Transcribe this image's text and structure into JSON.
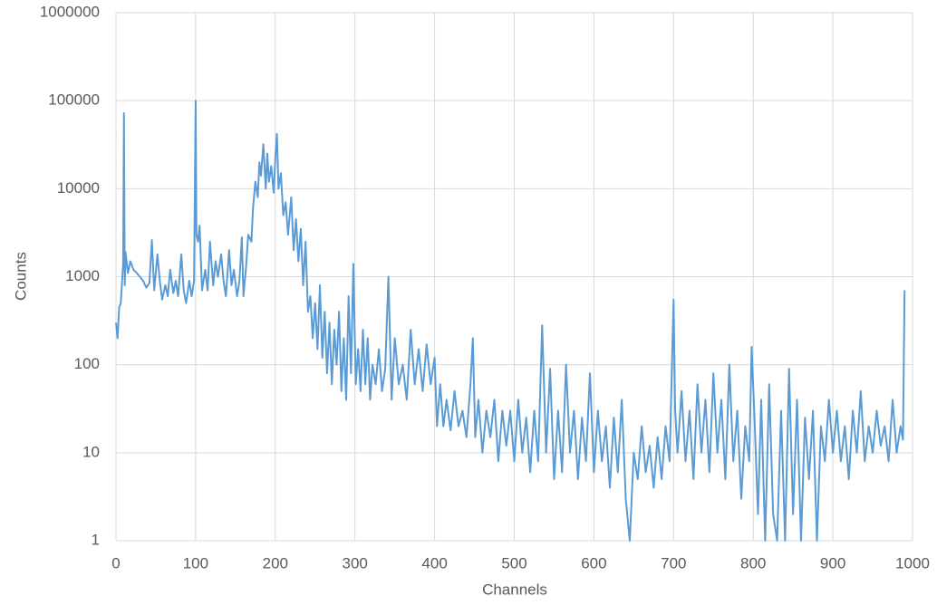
{
  "chart_data": {
    "type": "line",
    "x_label": "Channels",
    "y_label": "Counts",
    "log_y": true,
    "grid": true,
    "xlim": [
      0,
      1000
    ],
    "xticks": [
      0,
      100,
      200,
      300,
      400,
      500,
      600,
      700,
      800,
      900,
      1000
    ],
    "ylim": [
      1,
      1000000
    ],
    "yticks": [
      1,
      10,
      100,
      1000,
      10000,
      100000,
      1000000
    ],
    "x": [
      0,
      2,
      4,
      6,
      9,
      10,
      11,
      12,
      15,
      18,
      22,
      26,
      30,
      34,
      38,
      42,
      45,
      48,
      52,
      55,
      58,
      62,
      65,
      68,
      72,
      75,
      78,
      82,
      85,
      88,
      92,
      95,
      98,
      100,
      101,
      103,
      105,
      108,
      112,
      115,
      118,
      122,
      125,
      128,
      132,
      135,
      138,
      142,
      145,
      148,
      152,
      155,
      158,
      160,
      163,
      166,
      170,
      172,
      175,
      178,
      180,
      182,
      185,
      188,
      190,
      192,
      195,
      198,
      200,
      202,
      204,
      207,
      210,
      213,
      216,
      220,
      223,
      226,
      229,
      232,
      235,
      238,
      241,
      244,
      247,
      250,
      253,
      256,
      259,
      262,
      265,
      268,
      271,
      274,
      277,
      280,
      283,
      286,
      289,
      292,
      295,
      298,
      301,
      304,
      307,
      310,
      313,
      316,
      319,
      322,
      326,
      330,
      334,
      338,
      342,
      346,
      350,
      355,
      360,
      365,
      370,
      375,
      380,
      385,
      390,
      395,
      400,
      403,
      407,
      411,
      415,
      420,
      425,
      430,
      435,
      440,
      445,
      448,
      451,
      455,
      460,
      465,
      470,
      475,
      480,
      485,
      490,
      495,
      500,
      505,
      510,
      515,
      520,
      525,
      530,
      535,
      540,
      545,
      550,
      555,
      560,
      565,
      570,
      575,
      580,
      585,
      590,
      595,
      600,
      605,
      610,
      615,
      620,
      625,
      630,
      635,
      640,
      645,
      650,
      655,
      660,
      665,
      670,
      675,
      680,
      685,
      690,
      695,
      700,
      702,
      705,
      710,
      715,
      720,
      725,
      730,
      735,
      740,
      745,
      750,
      755,
      760,
      765,
      770,
      775,
      780,
      785,
      790,
      795,
      798,
      802,
      806,
      810,
      815,
      820,
      825,
      830,
      835,
      840,
      845,
      850,
      855,
      860,
      865,
      870,
      875,
      880,
      885,
      890,
      895,
      900,
      905,
      910,
      915,
      920,
      925,
      930,
      935,
      940,
      945,
      950,
      955,
      960,
      965,
      970,
      975,
      980,
      985,
      988,
      990
    ],
    "series": [
      {
        "color": "#5b9bd5",
        "values": [
          300,
          200,
          450,
          500,
          1400,
          72000,
          800,
          1900,
          1100,
          1500,
          1200,
          1100,
          1000,
          900,
          750,
          850,
          2600,
          700,
          1800,
          900,
          550,
          800,
          600,
          1200,
          650,
          900,
          600,
          1800,
          700,
          500,
          900,
          600,
          900,
          100000,
          3000,
          2500,
          3800,
          700,
          1200,
          700,
          2500,
          800,
          1500,
          1000,
          1800,
          900,
          600,
          2000,
          800,
          1200,
          600,
          900,
          2800,
          600,
          1200,
          3000,
          2500,
          6000,
          12000,
          8000,
          20000,
          14000,
          32000,
          10000,
          25000,
          12000,
          18000,
          9000,
          22000,
          42000,
          10000,
          15000,
          5000,
          7000,
          3000,
          8000,
          2000,
          4500,
          1500,
          3500,
          800,
          2500,
          400,
          600,
          200,
          500,
          150,
          800,
          120,
          400,
          80,
          300,
          60,
          250,
          100,
          400,
          50,
          200,
          40,
          600,
          80,
          1400,
          60,
          150,
          50,
          250,
          60,
          200,
          40,
          100,
          60,
          150,
          50,
          90,
          1000,
          40,
          200,
          60,
          100,
          40,
          250,
          60,
          150,
          50,
          170,
          60,
          120,
          20,
          60,
          20,
          40,
          18,
          50,
          20,
          30,
          15,
          60,
          200,
          15,
          40,
          10,
          30,
          15,
          40,
          8,
          30,
          12,
          30,
          8,
          40,
          10,
          25,
          6,
          30,
          8,
          280,
          10,
          90,
          5,
          30,
          6,
          100,
          10,
          30,
          5,
          25,
          8,
          80,
          6,
          30,
          8,
          20,
          4,
          25,
          6,
          40,
          3,
          1,
          10,
          5,
          20,
          6,
          12,
          4,
          15,
          5,
          20,
          8,
          550,
          30,
          10,
          50,
          8,
          30,
          5,
          60,
          10,
          40,
          6,
          80,
          10,
          40,
          5,
          100,
          8,
          30,
          3,
          20,
          8,
          160,
          20,
          2,
          40,
          1,
          60,
          2,
          1,
          30,
          1,
          90,
          2,
          40,
          1,
          25,
          5,
          30,
          1,
          20,
          8,
          40,
          10,
          30,
          8,
          20,
          5,
          30,
          10,
          50,
          8,
          20,
          10,
          30,
          12,
          20,
          8,
          40,
          10,
          20,
          14,
          700
        ]
      }
    ]
  }
}
